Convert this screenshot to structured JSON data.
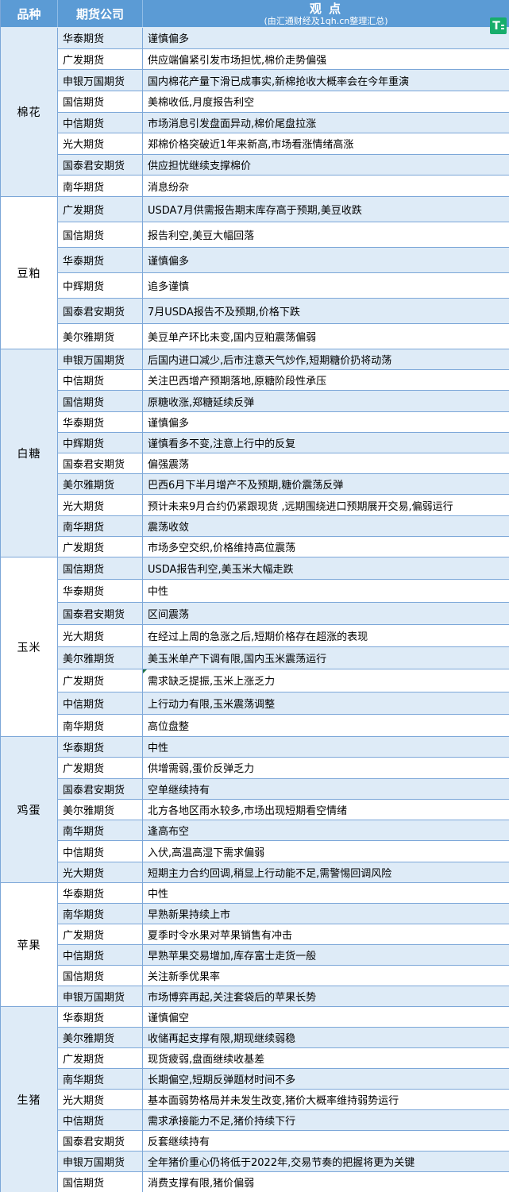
{
  "header": {
    "variety_label": "品种",
    "company_label": "期货公司",
    "view_title": "观  点",
    "view_subtitle": "(由汇通财经及1qh.cn整理汇总)",
    "logo_text": "T"
  },
  "colors": {
    "header_bg": "#5B9BD5",
    "stripe_blue": "#DEEBF7",
    "border_blue": "#7CA7D8",
    "logo_green": "#17AD6B",
    "marker_green": "#1E7145"
  },
  "sections": [
    {
      "variety": "棉花",
      "rows": [
        {
          "company": "华泰期货",
          "view": "谨慎偏多"
        },
        {
          "company": "广发期货",
          "view": "供应端偏紧引发市场担忧,棉价走势偏强"
        },
        {
          "company": "申银万国期货",
          "view": "国内棉花产量下滑已成事实,新棉抢收大概率会在今年重演"
        },
        {
          "company": "国信期货",
          "view": "美棉收低,月度报告利空"
        },
        {
          "company": "中信期货",
          "view": "市场消息引发盘面异动,棉价尾盘拉涨"
        },
        {
          "company": "光大期货",
          "view": "郑棉价格突破近1年来新高,市场看涨情绪高涨"
        },
        {
          "company": "国泰君安期货",
          "view": "供应担忧继续支撑棉价"
        },
        {
          "company": "南华期货",
          "view": "消息纷杂"
        }
      ]
    },
    {
      "variety": "豆粕",
      "rows": [
        {
          "company": "广发期货",
          "view": "USDA7月供需报告期末库存高于预期,美豆收跌"
        },
        {
          "company": "国信期货",
          "view": "报告利空,美豆大幅回落"
        },
        {
          "company": "华泰期货",
          "view": "谨慎偏多"
        },
        {
          "company": "中辉期货",
          "view": "追多谨慎"
        },
        {
          "company": "国泰君安期货",
          "view": "7月USDA报告不及预期,价格下跌"
        },
        {
          "company": "美尔雅期货",
          "view": "美豆单产环比未变,国内豆粕震荡偏弱"
        }
      ]
    },
    {
      "variety": "白糖",
      "rows": [
        {
          "company": "申银万国期货",
          "view": "后国内进口减少,后市注意天气炒作,短期糖价扔将动荡"
        },
        {
          "company": "中信期货",
          "view": "关注巴西增产预期落地,原糖阶段性承压"
        },
        {
          "company": "国信期货",
          "view": "原糖收涨,郑糖延续反弹"
        },
        {
          "company": "华泰期货",
          "view": "谨慎偏多"
        },
        {
          "company": "中辉期货",
          "view": "谨慎看多不变,注意上行中的反复"
        },
        {
          "company": "国泰君安期货",
          "view": "偏强震荡"
        },
        {
          "company": "美尔雅期货",
          "view": "巴西6月下半月增产不及预期,糖价震荡反弹"
        },
        {
          "company": "光大期货",
          "view": "预计未来9月合约仍紧跟现货 ,远期围绕进口预期展开交易,偏弱运行"
        },
        {
          "company": "南华期货",
          "view": "震荡收敛"
        },
        {
          "company": "广发期货",
          "view": "市场多空交织,价格维持高位震荡"
        }
      ]
    },
    {
      "variety": "玉米",
      "rows": [
        {
          "company": "国信期货",
          "view": "USDA报告利空,美玉米大幅走跌"
        },
        {
          "company": "华泰期货",
          "view": "中性"
        },
        {
          "company": "国泰君安期货",
          "view": "区间震荡"
        },
        {
          "company": "光大期货",
          "view": "在经过上周的急涨之后,短期价格存在超涨的表现"
        },
        {
          "company": "美尔雅期货",
          "view": "美玉米单产下调有限,国内玉米震荡运行"
        },
        {
          "company": "广发期货",
          "view": "需求缺乏提振,玉米上涨乏力",
          "marker": true
        },
        {
          "company": "中信期货",
          "view": "上行动力有限,玉米震荡调整"
        },
        {
          "company": "南华期货",
          "view": "高位盘整"
        }
      ]
    },
    {
      "variety": "鸡蛋",
      "rows": [
        {
          "company": "华泰期货",
          "view": "中性"
        },
        {
          "company": "广发期货",
          "view": "供增需弱,蛋价反弹乏力"
        },
        {
          "company": "国泰君安期货",
          "view": "空单继续持有"
        },
        {
          "company": "美尔雅期货",
          "view": "北方各地区雨水较多,市场出现短期看空情绪"
        },
        {
          "company": "南华期货",
          "view": "逢高布空"
        },
        {
          "company": "中信期货",
          "view": "入伏,高温高湿下需求偏弱"
        },
        {
          "company": "光大期货",
          "view": "短期主力合约回调,稍显上行动能不足,需警惕回调风险"
        }
      ]
    },
    {
      "variety": "苹果",
      "rows": [
        {
          "company": "华泰期货",
          "view": "中性"
        },
        {
          "company": "南华期货",
          "view": "早熟新果持续上市"
        },
        {
          "company": "广发期货",
          "view": "夏季时令水果对苹果销售有冲击"
        },
        {
          "company": "中信期货",
          "view": "早熟苹果交易增加,库存富士走货一般"
        },
        {
          "company": "国信期货",
          "view": "关注新季优果率"
        },
        {
          "company": "申银万国期货",
          "view": "市场博弈再起,关注套袋后的苹果长势"
        }
      ]
    },
    {
      "variety": "生猪",
      "rows": [
        {
          "company": "华泰期货",
          "view": "谨慎偏空"
        },
        {
          "company": "美尔雅期货",
          "view": "收储再起支撑有限,期现继续弱稳"
        },
        {
          "company": "广发期货",
          "view": "现货疲弱,盘面继续收基差"
        },
        {
          "company": "南华期货",
          "view": "长期偏空,短期反弹题材时间不多"
        },
        {
          "company": "光大期货",
          "view": "基本面弱势格局并未发生改变,猪价大概率维持弱势运行"
        },
        {
          "company": "中信期货",
          "view": "需求承接能力不足,猪价持续下行"
        },
        {
          "company": "国泰君安期货",
          "view": "反套继续持有"
        },
        {
          "company": "申银万国期货",
          "view": "全年猪价重心仍将低于2022年,交易节奏的把握将更为关键"
        },
        {
          "company": "国信期货",
          "view": "消费支撑有限,猪价偏弱"
        }
      ]
    }
  ]
}
